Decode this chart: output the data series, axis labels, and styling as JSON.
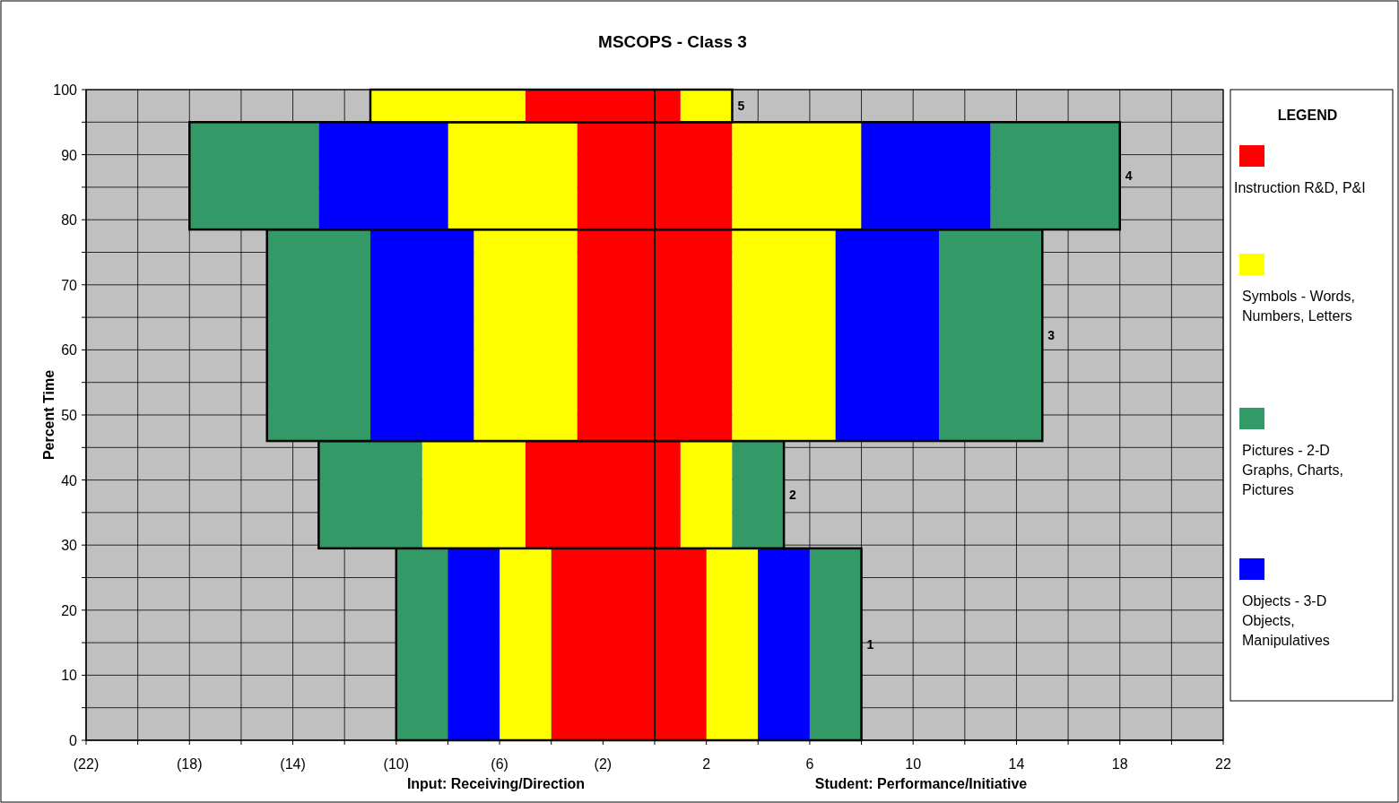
{
  "chart_data": {
    "type": "bar",
    "orientation": "horizontal",
    "stacked": true,
    "title": "MSCOPS - Class 3",
    "ylabel": "Percent Time",
    "legend_title": "LEGEND",
    "legend": "right",
    "grid": true,
    "annotations": [
      "Input: Receiving/Direction",
      "Student: Performance/Initiative",
      {
        "text": "1",
        "x": 8,
        "y": 14.75
      },
      {
        "text": "2",
        "x": 5,
        "y": 37.75
      },
      {
        "text": "3",
        "x": 15,
        "y": 62.25
      },
      {
        "text": "4",
        "x": 18,
        "y": 86.75
      },
      {
        "text": "5",
        "x": 3,
        "y": 97.5
      }
    ],
    "x": [
      14.75,
      37.75,
      62.25,
      86.75,
      97.5
    ],
    "series": [
      {
        "name": "Instruction R&D, P&I",
        "color": "#ff0000",
        "values": [
          -4,
          -5,
          -3,
          -3,
          -5
        ]
      },
      {
        "color": "#ff0000",
        "values": [
          2,
          1,
          3,
          3,
          1
        ]
      },
      {
        "name": "Symbols - Words, Numbers, Letters",
        "color": "#ffff00",
        "values": [
          -2,
          -4,
          -4,
          -5,
          -6
        ]
      },
      {
        "color": "#ffff00",
        "values": [
          2,
          2,
          4,
          5,
          2
        ]
      },
      {
        "color": "#0000ff",
        "values": [
          2,
          null,
          4,
          5,
          null
        ]
      },
      {
        "name": "Pictures - 2-D Graphs, Charts, Pictures",
        "color": "#339966",
        "values": [
          2,
          2,
          4,
          5,
          null
        ]
      },
      {
        "name": "Objects - 3-D Objects, Manipulatives",
        "color": "#0000ff",
        "values": [
          -2,
          null,
          -4,
          -5,
          null
        ]
      },
      {
        "color": "#339966",
        "values": [
          -2,
          -4,
          -4,
          -5,
          null
        ]
      }
    ],
    "xlim": [
      -22,
      22
    ],
    "xticks": [
      {
        "value": -22,
        "label": "(22)"
      },
      {
        "value": -20,
        "label": null
      },
      {
        "value": -18,
        "label": "(18)"
      },
      {
        "value": -16,
        "label": null
      },
      {
        "value": -14,
        "label": "(14)"
      },
      {
        "value": -12,
        "label": null
      },
      {
        "value": -10,
        "label": "(10)"
      },
      {
        "value": -8,
        "label": null
      },
      {
        "value": -6,
        "label": "(6)"
      },
      {
        "value": -4,
        "label": null
      },
      {
        "value": -2,
        "label": "(2)"
      },
      {
        "value": 0,
        "label": null
      },
      2,
      {
        "value": 4,
        "label": null
      },
      6,
      {
        "value": 8,
        "label": null
      },
      10,
      {
        "value": 12,
        "label": null
      },
      14,
      {
        "value": 16,
        "label": null
      },
      18,
      {
        "value": 20,
        "label": null
      },
      22
    ],
    "ylim": [
      0,
      100
    ],
    "yticks": [
      0,
      {
        "value": 5,
        "label": null
      },
      10,
      {
        "value": 15,
        "label": null
      },
      20,
      {
        "value": 25,
        "label": null
      },
      30,
      {
        "value": 35,
        "label": null
      },
      40,
      {
        "value": 45,
        "label": null
      },
      50,
      {
        "value": 55,
        "label": null
      },
      60,
      {
        "value": 65,
        "label": null
      },
      70,
      {
        "value": 75,
        "label": null
      },
      80,
      {
        "value": 85,
        "label": null
      },
      90,
      {
        "value": 95,
        "label": null
      },
      100
    ]
  }
}
